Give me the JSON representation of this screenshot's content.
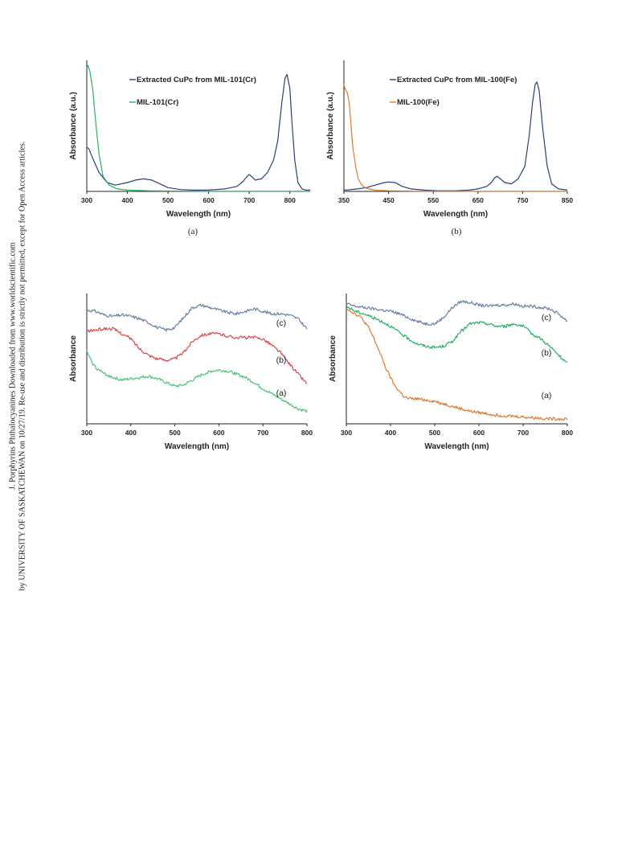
{
  "sidebar": {
    "line1": "J. Porphyrins Phthalocyanines Downloaded from www.worldscientific.com",
    "line2": "by UNIVERSITY OF SASKATCHEWAN on 10/27/19. Re-use and distribution is strictly not permitted, except for Open Access articles."
  },
  "colors": {
    "navy": "#2c3e78",
    "green": "#27b062",
    "orange": "#e07a2e",
    "red": "#d84a4a",
    "slate": "#6a7fa8",
    "mint": "#4cc37a"
  },
  "chart_data": [
    {
      "type": "line",
      "caption": "(a)",
      "xlabel": "Wavelength (nm)",
      "ylabel": "Absorbance (a.u.)",
      "xlim": [
        300,
        850
      ],
      "xticks": [
        300,
        400,
        500,
        600,
        700,
        800
      ],
      "ylim": [
        0,
        1
      ],
      "legend": "top-right",
      "series": [
        {
          "name": "Extracted CuPc from MIL-101(Cr)",
          "color": "#2c3e78",
          "x": [
            300,
            305,
            315,
            330,
            350,
            370,
            400,
            420,
            440,
            460,
            480,
            500,
            530,
            560,
            600,
            640,
            670,
            685,
            695,
            700,
            705,
            715,
            730,
            745,
            760,
            770,
            780,
            788,
            793,
            800,
            805,
            812,
            820,
            830,
            840,
            850
          ],
          "y": [
            0.35,
            0.34,
            0.26,
            0.15,
            0.07,
            0.05,
            0.07,
            0.09,
            0.1,
            0.09,
            0.06,
            0.03,
            0.015,
            0.01,
            0.01,
            0.02,
            0.04,
            0.08,
            0.12,
            0.135,
            0.12,
            0.09,
            0.1,
            0.15,
            0.25,
            0.4,
            0.7,
            0.9,
            0.93,
            0.82,
            0.55,
            0.25,
            0.07,
            0.02,
            0.01,
            0.01
          ]
        },
        {
          "name": "MIL-101(Cr)",
          "color": "#27b062",
          "x": [
            300,
            303,
            308,
            315,
            322,
            330,
            340,
            355,
            375,
            400,
            450,
            500,
            550,
            600,
            700,
            800,
            850
          ],
          "y": [
            0.98,
            1.0,
            0.95,
            0.8,
            0.55,
            0.3,
            0.12,
            0.05,
            0.02,
            0.01,
            0.005,
            0.003,
            0.002,
            0.001,
            0.001,
            0.001,
            0.001
          ]
        }
      ]
    },
    {
      "type": "line",
      "caption": "(b)",
      "xlabel": "Wavelength (nm)",
      "ylabel": "Absorbance (a.u.)",
      "xlim": [
        350,
        850
      ],
      "xticks": [
        350,
        450,
        550,
        650,
        750,
        850
      ],
      "ylim": [
        0,
        1
      ],
      "legend": "top-right",
      "series": [
        {
          "name": "Extracted CuPc from MIL-100(Fe)",
          "color": "#2c3e78",
          "x": [
            350,
            360,
            380,
            400,
            420,
            440,
            450,
            465,
            480,
            500,
            530,
            560,
            600,
            630,
            650,
            670,
            680,
            688,
            693,
            700,
            710,
            725,
            740,
            755,
            765,
            772,
            778,
            782,
            787,
            795,
            805,
            815,
            830,
            850
          ],
          "y": [
            0.01,
            0.012,
            0.02,
            0.03,
            0.05,
            0.07,
            0.075,
            0.07,
            0.04,
            0.02,
            0.01,
            0.005,
            0.005,
            0.01,
            0.02,
            0.04,
            0.07,
            0.11,
            0.12,
            0.1,
            0.07,
            0.06,
            0.1,
            0.2,
            0.45,
            0.7,
            0.85,
            0.87,
            0.8,
            0.5,
            0.2,
            0.06,
            0.02,
            0.01
          ]
        },
        {
          "name": "MIL-100(Fe)",
          "color": "#e07a2e",
          "x": [
            350,
            352,
            355,
            358,
            362,
            366,
            370,
            376,
            382,
            390,
            400,
            420,
            450,
            500,
            600,
            700,
            850
          ],
          "y": [
            0.85,
            0.82,
            0.8,
            0.78,
            0.7,
            0.52,
            0.35,
            0.2,
            0.1,
            0.05,
            0.025,
            0.01,
            0.005,
            0.002,
            0.001,
            0.001,
            0.001
          ]
        }
      ]
    },
    {
      "type": "line",
      "xlabel": "Wavelength (nm)",
      "ylabel": "Absorbance",
      "xlim": [
        300,
        800
      ],
      "xticks": [
        300,
        400,
        500,
        600,
        700,
        800
      ],
      "ylim": [
        0,
        1
      ],
      "series": [
        {
          "name": "(c)",
          "color": "#6a7fa8",
          "x": [
            300,
            320,
            340,
            360,
            380,
            400,
            420,
            440,
            460,
            480,
            500,
            520,
            540,
            560,
            580,
            600,
            620,
            640,
            660,
            680,
            700,
            720,
            740,
            760,
            780,
            800
          ],
          "y": [
            0.91,
            0.9,
            0.87,
            0.86,
            0.87,
            0.86,
            0.84,
            0.81,
            0.77,
            0.75,
            0.77,
            0.85,
            0.93,
            0.95,
            0.93,
            0.91,
            0.89,
            0.88,
            0.9,
            0.92,
            0.9,
            0.88,
            0.88,
            0.87,
            0.84,
            0.76
          ]
        },
        {
          "name": "(b)",
          "color": "#d84a4a",
          "x": [
            300,
            320,
            340,
            360,
            380,
            400,
            420,
            440,
            460,
            480,
            500,
            520,
            540,
            560,
            580,
            600,
            620,
            640,
            660,
            680,
            700,
            720,
            740,
            760,
            780,
            800
          ],
          "y": [
            0.74,
            0.75,
            0.76,
            0.76,
            0.72,
            0.68,
            0.6,
            0.55,
            0.52,
            0.51,
            0.52,
            0.57,
            0.66,
            0.71,
            0.72,
            0.72,
            0.7,
            0.69,
            0.69,
            0.69,
            0.68,
            0.63,
            0.57,
            0.48,
            0.4,
            0.32
          ]
        },
        {
          "name": "(a)",
          "color": "#4cc37a",
          "x": [
            300,
            310,
            320,
            340,
            360,
            380,
            400,
            420,
            440,
            460,
            480,
            500,
            520,
            540,
            560,
            580,
            600,
            620,
            640,
            660,
            680,
            700,
            720,
            740,
            760,
            780,
            800
          ],
          "y": [
            0.58,
            0.5,
            0.45,
            0.4,
            0.37,
            0.35,
            0.36,
            0.37,
            0.38,
            0.36,
            0.33,
            0.3,
            0.31,
            0.35,
            0.39,
            0.42,
            0.43,
            0.42,
            0.4,
            0.37,
            0.33,
            0.28,
            0.24,
            0.2,
            0.16,
            0.12,
            0.1
          ]
        }
      ]
    },
    {
      "type": "line",
      "xlabel": "Wavelength (nm)",
      "ylabel": "Absorbance",
      "xlim": [
        300,
        800
      ],
      "xticks": [
        300,
        400,
        500,
        600,
        700,
        800
      ],
      "ylim": [
        0,
        1
      ],
      "series": [
        {
          "name": "(c)",
          "color": "#6a7fa8",
          "x": [
            300,
            310,
            320,
            340,
            360,
            380,
            400,
            420,
            440,
            460,
            480,
            500,
            520,
            540,
            560,
            580,
            600,
            620,
            640,
            660,
            680,
            700,
            720,
            740,
            760,
            780,
            800
          ],
          "y": [
            0.96,
            0.95,
            0.94,
            0.93,
            0.92,
            0.91,
            0.9,
            0.88,
            0.85,
            0.82,
            0.8,
            0.8,
            0.85,
            0.93,
            0.98,
            0.97,
            0.95,
            0.94,
            0.95,
            0.95,
            0.96,
            0.94,
            0.94,
            0.93,
            0.92,
            0.88,
            0.82
          ]
        },
        {
          "name": "(b)",
          "color": "#27b062",
          "x": [
            300,
            310,
            320,
            340,
            360,
            380,
            400,
            420,
            440,
            460,
            480,
            500,
            520,
            540,
            560,
            580,
            600,
            620,
            640,
            660,
            680,
            700,
            720,
            740,
            760,
            780,
            800
          ],
          "y": [
            0.94,
            0.92,
            0.9,
            0.88,
            0.85,
            0.82,
            0.78,
            0.73,
            0.68,
            0.64,
            0.62,
            0.61,
            0.62,
            0.66,
            0.74,
            0.8,
            0.81,
            0.8,
            0.78,
            0.78,
            0.8,
            0.78,
            0.72,
            0.68,
            0.62,
            0.55,
            0.48
          ]
        },
        {
          "name": "(a)",
          "color": "#e07a2e",
          "x": [
            300,
            310,
            320,
            330,
            340,
            350,
            360,
            370,
            380,
            390,
            400,
            410,
            420,
            430,
            440,
            460,
            480,
            500,
            520,
            540,
            560,
            580,
            600,
            640,
            680,
            720,
            760,
            800
          ],
          "y": [
            0.93,
            0.9,
            0.88,
            0.86,
            0.82,
            0.77,
            0.7,
            0.62,
            0.53,
            0.44,
            0.37,
            0.3,
            0.26,
            0.22,
            0.2,
            0.2,
            0.19,
            0.18,
            0.16,
            0.14,
            0.12,
            0.1,
            0.09,
            0.07,
            0.06,
            0.05,
            0.04,
            0.04
          ]
        }
      ]
    }
  ]
}
